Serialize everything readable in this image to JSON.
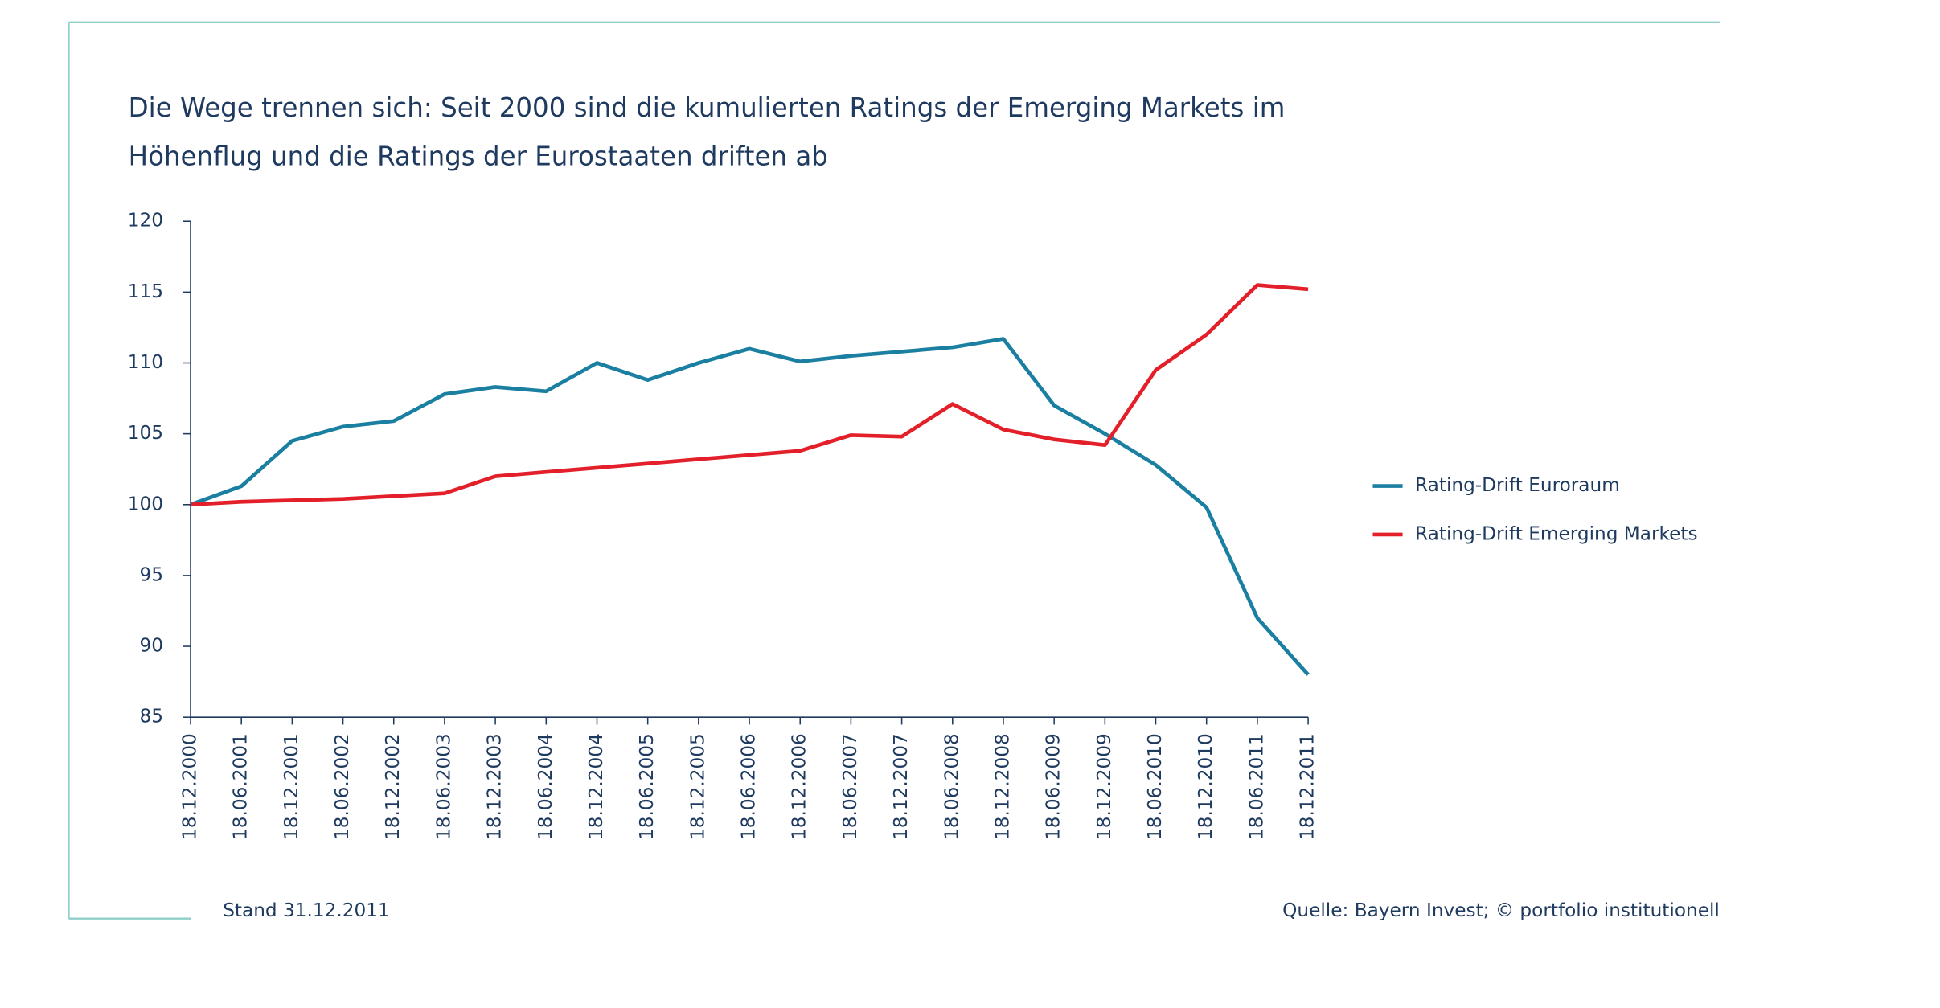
{
  "chart_data": {
    "type": "line",
    "title": [
      "Die Wege trennen sich: Seit 2000 sind die kumulierten Ratings der Emerging Markets im",
      "Höhenflug und die Ratings der Eurostaaten driften ab"
    ],
    "categories": [
      "18.12.2000",
      "18.06.2001",
      "18.12.2001",
      "18.06.2002",
      "18.12.2002",
      "18.06.2003",
      "18.12.2003",
      "18.06.2004",
      "18.12.2004",
      "18.06.2005",
      "18.12.2005",
      "18.06.2006",
      "18.12.2006",
      "18.06.2007",
      "18.12.2007",
      "18.06.2008",
      "18.12.2008",
      "18.06.2009",
      "18.12.2009",
      "18.06.2010",
      "18.12.2010",
      "18.06.2011",
      "18.12.2011"
    ],
    "series": [
      {
        "name": "Rating-Drift Euroraum",
        "color": "#1a7fa0",
        "values": [
          100,
          101.3,
          104.5,
          105.5,
          105.9,
          107.8,
          108.3,
          108,
          110,
          108.8,
          110,
          111,
          110.1,
          110.5,
          110.8,
          111.1,
          111.7,
          107,
          105,
          102.8,
          99.8,
          92,
          88
        ]
      },
      {
        "name": "Rating-Drift Emerging Markets",
        "color": "#e3202a",
        "values": [
          100,
          100.2,
          100.3,
          100.4,
          100.6,
          100.8,
          102,
          102.3,
          102.6,
          102.9,
          103.2,
          103.5,
          103.8,
          104.9,
          104.8,
          107.1,
          105.3,
          104.6,
          104.2,
          109.5,
          112,
          115.5,
          115.2
        ]
      }
    ],
    "ylim": [
      85,
      120
    ],
    "yticks": [
      85,
      90,
      95,
      100,
      105,
      110,
      115,
      120
    ],
    "grid": false,
    "legend": "right",
    "note": "Stand 31.12.2011",
    "source": "Quelle: Bayern Invest; © portfolio institutionell"
  }
}
